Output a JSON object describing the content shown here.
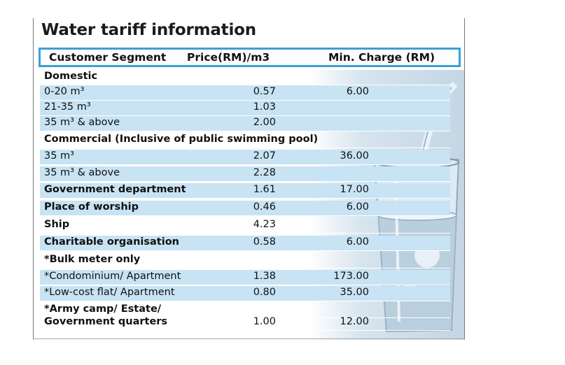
{
  "title": "Water tariff information",
  "header": {
    "segment": "Customer Segment",
    "price": "Price(RM)/m3",
    "min_charge": "Min. Charge (RM)"
  },
  "rows": [
    {
      "segment": "Domestic",
      "price": "",
      "min": "",
      "bold": true
    },
    {
      "segment": "0-20 m³",
      "price": "0.57",
      "min": "6.00"
    },
    {
      "segment": "21-35 m³",
      "price": "1.03",
      "min": ""
    },
    {
      "segment": "35 m³ & above",
      "price": "2.00",
      "min": ""
    },
    {
      "segment": "Commercial (Inclusive of public swimming pool)",
      "price": "",
      "min": "",
      "bold": true
    },
    {
      "segment": "35 m³",
      "price": "2.07",
      "min": "36.00"
    },
    {
      "segment": "35 m³ & above",
      "price": "2.28",
      "min": ""
    },
    {
      "segment": "Government department",
      "price": "1.61",
      "min": "17.00",
      "bold": true
    },
    {
      "segment": "Place of worship",
      "price": "0.46",
      "min": "6.00",
      "bold": true
    },
    {
      "segment": "Ship",
      "price": "4.23",
      "min": "",
      "bold": true
    },
    {
      "segment": "Charitable organisation",
      "price": "0.58",
      "min": "6.00",
      "bold": true
    },
    {
      "segment": "*Bulk meter only",
      "price": "",
      "min": "",
      "bold": true
    },
    {
      "segment": "*Condominium/ Apartment",
      "price": "1.38",
      "min": "173.00"
    },
    {
      "segment": "*Low-cost flat/ Apartment",
      "price": "0.80",
      "min": "35.00"
    },
    {
      "segment": "*Army camp/ Estate/",
      "price": "",
      "min": "",
      "bold": true
    },
    {
      "segment": "Government quarters",
      "price": "1.00",
      "min": "12.00",
      "bold": true
    }
  ]
}
